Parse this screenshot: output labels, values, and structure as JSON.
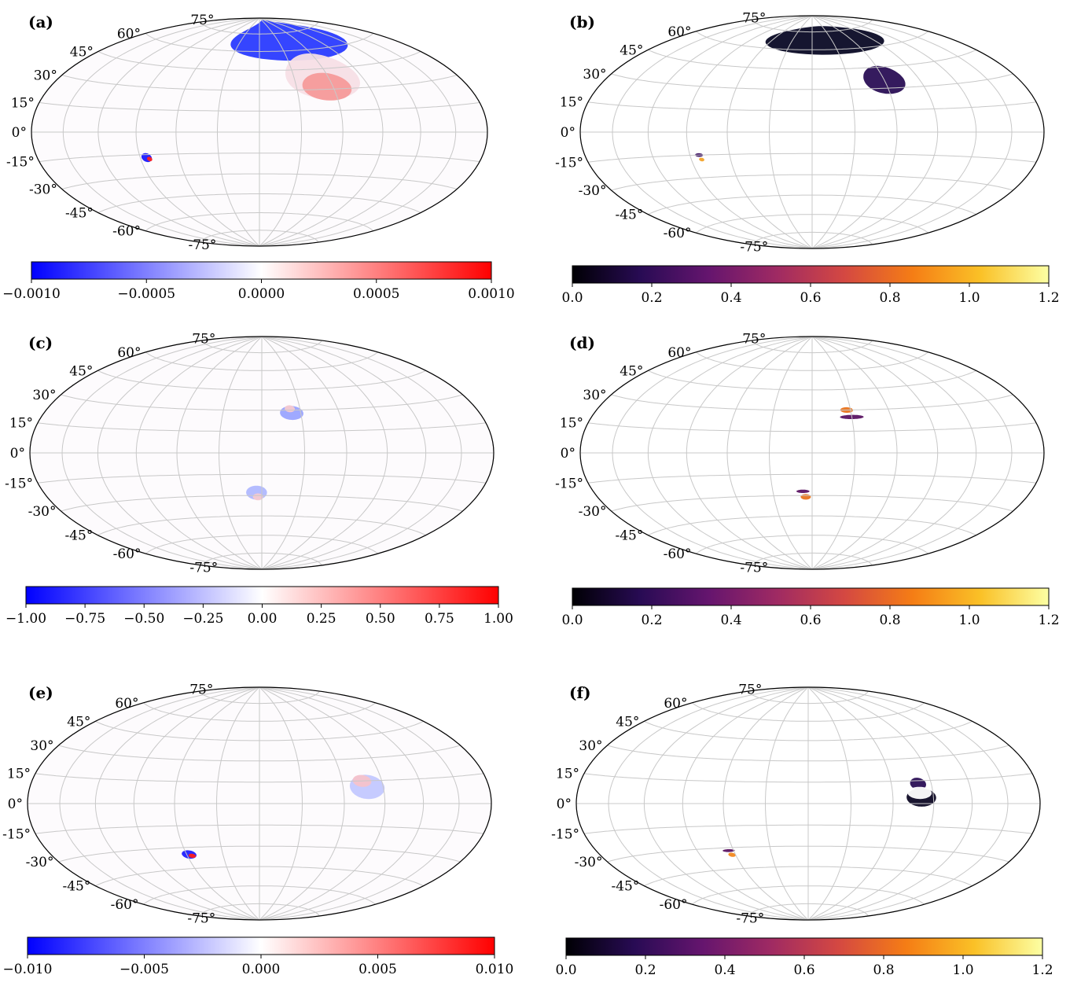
{
  "chart_data": [
    {
      "type": "heatmap",
      "projection": "hammer",
      "panel_label": "(a)",
      "latitude_labels": [
        "75°",
        "60°",
        "45°",
        "30°",
        "15°",
        "0°",
        "-15°",
        "-30°",
        "-45°",
        "-60°",
        "-75°"
      ],
      "colormap": "bwr",
      "colorbar_ticks": [
        "−0.0010",
        "−0.0005",
        "0.0000",
        "0.0005",
        "0.0010"
      ],
      "colorbar_range": [
        -0.001,
        0.001
      ],
      "features": [
        {
          "lon": 45,
          "lat": 70,
          "a": 90,
          "b": 18,
          "color": "#2a3bff"
        },
        {
          "lon": 55,
          "lat": 40,
          "a": 32,
          "b": 17,
          "color": "#f7dfe6"
        },
        {
          "lon": 55,
          "lat": 32,
          "a": 20,
          "b": 10,
          "color": "#f59a9a"
        },
        {
          "lon": -85,
          "lat": -17,
          "a": 4,
          "b": 3,
          "color": "#1a1aff"
        },
        {
          "lon": -83,
          "lat": -18,
          "a": 2,
          "b": 1.5,
          "color": "#ff2020"
        }
      ]
    },
    {
      "type": "heatmap",
      "projection": "hammer",
      "panel_label": "(b)",
      "latitude_labels": [
        "75°",
        "60°",
        "45°",
        "30°",
        "15°",
        "0°",
        "-15°",
        "-30°",
        "-45°",
        "-60°",
        "-75°"
      ],
      "colormap": "inferno",
      "colorbar_ticks": [
        "0.0",
        "0.2",
        "0.4",
        "0.6",
        "0.8",
        "1.0",
        "1.2"
      ],
      "colorbar_range": [
        0,
        1.2
      ],
      "features": [
        {
          "lon": 20,
          "lat": 68,
          "a": 90,
          "b": 12,
          "color": "#0a0a25"
        },
        {
          "lon": 60,
          "lat": 36,
          "a": 17,
          "b": 10,
          "color": "#2a0f55"
        },
        {
          "lon": -83,
          "lat": -15,
          "a": 3,
          "b": 1.2,
          "color": "#3a0f60"
        },
        {
          "lon": -82,
          "lat": -18,
          "a": 2,
          "b": 1.2,
          "color": "#f3a32a"
        }
      ]
    },
    {
      "type": "heatmap",
      "projection": "hammer",
      "panel_label": "(c)",
      "latitude_labels": [
        "75°",
        "60°",
        "45°",
        "30°",
        "15°",
        "0°",
        "-15°",
        "-30°",
        "-45°",
        "-60°",
        "-75°"
      ],
      "colormap": "bwr",
      "colorbar_ticks": [
        "−1.00",
        "−0.75",
        "−0.50",
        "−0.25",
        "0.00",
        "0.25",
        "0.50",
        "0.75",
        "1.00"
      ],
      "colorbar_range": [
        -1,
        1
      ],
      "features": [
        {
          "lon": 23,
          "lat": 28,
          "a": 9,
          "b": 5,
          "color": "#9aa4ff"
        },
        {
          "lon": 22,
          "lat": 31,
          "a": 4,
          "b": 2.5,
          "color": "#f6c9d0"
        },
        {
          "lon": -4,
          "lat": -28,
          "a": 8,
          "b": 5,
          "color": "#b0b8ff"
        },
        {
          "lon": -3,
          "lat": -31,
          "a": 4,
          "b": 2.5,
          "color": "#f6c9d0"
        }
      ]
    },
    {
      "type": "heatmap",
      "projection": "hammer",
      "panel_label": "(d)",
      "latitude_labels": [
        "75°",
        "60°",
        "45°",
        "30°",
        "15°",
        "0°",
        "-15°",
        "-30°",
        "-45°",
        "-60°",
        "-75°"
      ],
      "colormap": "inferno",
      "colorbar_ticks": [
        "0.0",
        "0.2",
        "0.4",
        "0.6",
        "0.8",
        "1.0",
        "1.2"
      ],
      "colorbar_range": [
        0,
        1.2
      ],
      "features": [
        {
          "lon": 27,
          "lat": 30,
          "a": 5,
          "b": 2,
          "color": "#e8741f"
        },
        {
          "lon": 30,
          "lat": 25,
          "a": 9,
          "b": 1.5,
          "color": "#5b1463"
        },
        {
          "lon": -7,
          "lat": -27,
          "a": 5,
          "b": 1.2,
          "color": "#5b1463"
        },
        {
          "lon": -5,
          "lat": -31,
          "a": 4,
          "b": 2,
          "color": "#e8741f"
        }
      ]
    },
    {
      "type": "heatmap",
      "projection": "hammer",
      "panel_label": "(e)",
      "latitude_labels": [
        "75°",
        "60°",
        "45°",
        "30°",
        "15°",
        "0°",
        "-15°",
        "-30°",
        "-45°",
        "-60°",
        "-75°"
      ],
      "colormap": "bwr",
      "colorbar_ticks": [
        "−0.010",
        "−0.005",
        "0.000",
        "0.005",
        "0.010"
      ],
      "colorbar_range": [
        -0.01,
        0.01
      ],
      "features": [
        {
          "lon": 78,
          "lat": 11,
          "a": 13,
          "b": 8,
          "color": "#c3c8ff"
        },
        {
          "lon": 75,
          "lat": 15,
          "a": 7,
          "b": 4,
          "color": "#f6c2cb"
        },
        {
          "lon": -58,
          "lat": -35,
          "a": 6,
          "b": 3,
          "color": "#2020ff"
        },
        {
          "lon": -56,
          "lat": -36,
          "a": 3,
          "b": 1.5,
          "color": "#ff1e1e"
        }
      ]
    },
    {
      "type": "heatmap",
      "projection": "hammer",
      "panel_label": "(f)",
      "latitude_labels": [
        "75°",
        "60°",
        "45°",
        "30°",
        "15°",
        "0°",
        "-15°",
        "-30°",
        "-45°",
        "-60°",
        "-75°"
      ],
      "colormap": "inferno",
      "colorbar_ticks": [
        "0.0",
        "0.2",
        "0.4",
        "0.6",
        "0.8",
        "1.0",
        "1.2"
      ],
      "colorbar_range": [
        0,
        1.2
      ],
      "features": [
        {
          "lon": 80,
          "lat": 13,
          "a": 6,
          "b": 4,
          "color": "#2a0f55"
        },
        {
          "lon": 81,
          "lat": 4,
          "a": 11,
          "b": 6,
          "color": "#0d0824"
        },
        {
          "lon": 80,
          "lat": 7,
          "a": 9,
          "b": 4,
          "color": "#ffffff"
        },
        {
          "lon": -64,
          "lat": -32,
          "a": 5,
          "b": 1,
          "color": "#5b1463"
        },
        {
          "lon": -63,
          "lat": -35,
          "a": 3,
          "b": 1.5,
          "color": "#f2881f"
        }
      ]
    }
  ]
}
